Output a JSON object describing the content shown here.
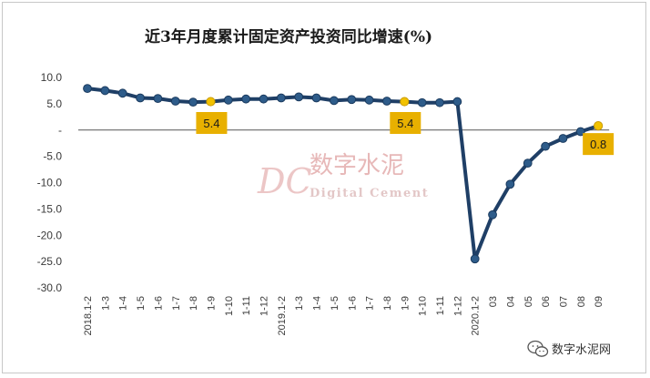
{
  "colors": {
    "line": "#1f3f66",
    "marker": "#2e5c8a",
    "highlight": "#f2c200",
    "label_bg": "#e8b000",
    "axis": "#555555"
  },
  "watermark": {
    "logo": "DC",
    "name_cn": "数字水泥",
    "name_en": "Digital Cement"
  },
  "footer": {
    "icon": "wechat-icon",
    "text": "数字水泥网"
  },
  "chart_data": {
    "type": "line",
    "title": "近3年月度累计固定资产投资同比增速(%)",
    "xlabel": "",
    "ylabel": "",
    "ylim": [
      -30,
      10
    ],
    "y_ticks": [
      "10.0",
      "5.0",
      "-",
      "-5.0",
      "-10.0",
      "-15.0",
      "-20.0",
      "-25.0",
      "-30.0"
    ],
    "y_tick_values": [
      10,
      5,
      0,
      -5,
      -10,
      -15,
      -20,
      -25,
      -30
    ],
    "grid": false,
    "legend": "none",
    "categories": [
      "2018.1-2",
      "1-3",
      "1-4",
      "1-5",
      "1-6",
      "1-7",
      "1-8",
      "1-9",
      "1-10",
      "1-11",
      "1-12",
      "2019.1-2",
      "1-3",
      "1-4",
      "1-5",
      "1-6",
      "1-7",
      "1-8",
      "1-9",
      "1-10",
      "1-11",
      "1-12",
      "2020.1-2",
      "03",
      "04",
      "05",
      "06",
      "07",
      "08",
      "09"
    ],
    "series": [
      {
        "values": [
          7.9,
          7.5,
          7.0,
          6.1,
          6.0,
          5.5,
          5.3,
          5.4,
          5.7,
          5.9,
          5.9,
          6.1,
          6.3,
          6.1,
          5.6,
          5.8,
          5.7,
          5.5,
          5.4,
          5.2,
          5.2,
          5.4,
          -24.5,
          -16.1,
          -10.3,
          -6.3,
          -3.1,
          -1.6,
          -0.3,
          0.8
        ]
      }
    ],
    "highlighted_points": [
      7,
      18,
      29
    ],
    "data_labels": [
      {
        "index": 7,
        "text": "5.4"
      },
      {
        "index": 18,
        "text": "5.4"
      },
      {
        "index": 29,
        "text": "0.8"
      }
    ]
  }
}
